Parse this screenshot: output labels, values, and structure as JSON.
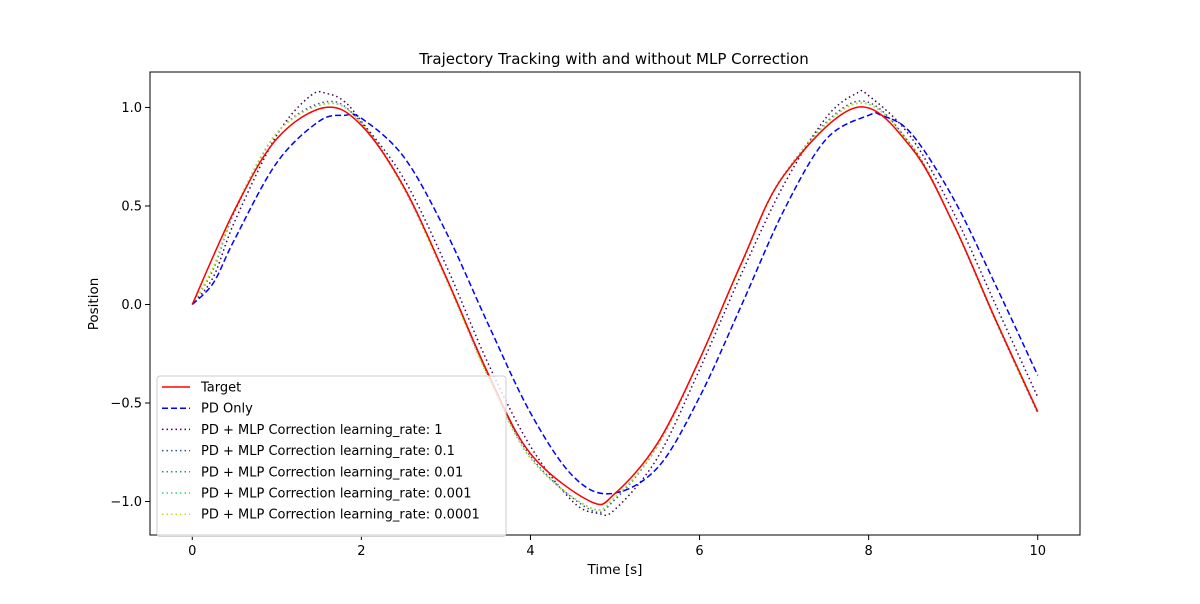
{
  "chart_data": {
    "type": "line",
    "title": "Trajectory Tracking with and without MLP Correction",
    "xlabel": "Time [s]",
    "ylabel": "Position",
    "xlim": [
      -0.5,
      10.5
    ],
    "ylim": [
      -1.17,
      1.18
    ],
    "xticks": [
      0,
      2,
      4,
      6,
      8,
      10
    ],
    "xtick_labels": [
      "0",
      "2",
      "4",
      "6",
      "8",
      "10"
    ],
    "yticks": [
      -1.0,
      -0.5,
      0.0,
      0.5,
      1.0
    ],
    "ytick_labels": [
      "−1.0",
      "−0.5",
      "0.0",
      "0.5",
      "1.0"
    ],
    "grid": false,
    "legend_position": "lower-left",
    "x_range": [
      0,
      10
    ],
    "series": [
      {
        "name": "Target",
        "color": "#ff0000",
        "style": "solid",
        "x": [
          0,
          0.5,
          1.0,
          1.5708,
          2.0,
          2.5,
          3.0,
          3.5,
          4.0,
          4.7124,
          5.0,
          5.5,
          6.0,
          6.5,
          7.0,
          7.854,
          8.5,
          9.0,
          9.5,
          10.0
        ],
        "y": [
          0.0,
          0.479,
          0.841,
          1.0,
          0.909,
          0.598,
          0.141,
          -0.351,
          -0.757,
          -1.0,
          -0.959,
          -0.706,
          -0.279,
          0.215,
          0.657,
          1.0,
          0.798,
          0.412,
          -0.075,
          -0.544
        ]
      },
      {
        "name": "PD Only",
        "color": "#0000ff",
        "style": "dashed",
        "x": [
          0,
          0.25,
          0.5,
          1.0,
          1.5,
          1.8,
          2.0,
          2.5,
          3.0,
          3.5,
          4.0,
          4.5,
          4.95,
          5.5,
          6.0,
          6.5,
          7.0,
          7.5,
          8.0,
          8.15,
          8.5,
          9.0,
          9.5,
          10.0
        ],
        "y": [
          0.0,
          0.11,
          0.33,
          0.72,
          0.93,
          0.96,
          0.945,
          0.75,
          0.37,
          -0.1,
          -0.55,
          -0.87,
          -0.96,
          -0.83,
          -0.47,
          0.0,
          0.48,
          0.84,
          0.96,
          0.96,
          0.87,
          0.54,
          0.1,
          -0.36
        ]
      },
      {
        "name": "PD + MLP Correction learning_rate: 1",
        "color": "#440154",
        "style": "dotted",
        "x": [
          0,
          0.25,
          0.5,
          1.0,
          1.4,
          1.6,
          1.8,
          2.0,
          2.5,
          3.0,
          3.5,
          4.0,
          4.5,
          4.8,
          5.0,
          5.5,
          6.0,
          6.5,
          7.0,
          7.5,
          7.85,
          8.0,
          8.5,
          9.0,
          9.5,
          10.0
        ],
        "y": [
          0.0,
          0.14,
          0.42,
          0.86,
          1.06,
          1.07,
          1.03,
          0.93,
          0.64,
          0.2,
          -0.3,
          -0.72,
          -1.0,
          -1.06,
          -1.04,
          -0.78,
          -0.33,
          0.16,
          0.61,
          0.95,
          1.07,
          1.06,
          0.85,
          0.47,
          0.0,
          -0.47
        ]
      },
      {
        "name": "PD + MLP Correction learning_rate: 0.1",
        "color": "#3b528b",
        "style": "dotted",
        "x": [
          0,
          0.25,
          0.5,
          1.0,
          1.6,
          2.0,
          2.5,
          3.0,
          3.5,
          4.0,
          4.7,
          5.0,
          5.5,
          6.0,
          6.5,
          7.0,
          7.85,
          8.5,
          9.0,
          9.5,
          10.0
        ],
        "y": [
          0.0,
          0.18,
          0.47,
          0.87,
          1.03,
          0.92,
          0.6,
          0.14,
          -0.36,
          -0.77,
          -1.04,
          -0.99,
          -0.72,
          -0.28,
          0.21,
          0.66,
          1.03,
          0.81,
          0.41,
          -0.08,
          -0.55
        ]
      },
      {
        "name": "PD + MLP Correction learning_rate: 0.01",
        "color": "#21918c",
        "style": "dotted",
        "x": [
          0,
          0.25,
          0.5,
          1.0,
          1.6,
          2.0,
          2.5,
          3.0,
          3.5,
          4.0,
          4.7,
          5.0,
          5.5,
          6.0,
          6.5,
          7.0,
          7.85,
          8.5,
          9.0,
          9.5,
          10.0
        ],
        "y": [
          0.0,
          0.19,
          0.47,
          0.87,
          1.02,
          0.92,
          0.59,
          0.13,
          -0.36,
          -0.78,
          -1.03,
          -0.98,
          -0.72,
          -0.28,
          0.21,
          0.66,
          1.02,
          0.81,
          0.41,
          -0.08,
          -0.55
        ]
      },
      {
        "name": "PD + MLP Correction learning_rate: 0.001",
        "color": "#3ccf7a",
        "style": "dotted",
        "x": [
          0,
          0.25,
          0.5,
          1.0,
          1.6,
          2.0,
          2.5,
          3.0,
          3.5,
          4.0,
          4.7,
          5.0,
          5.5,
          6.0,
          6.5,
          7.0,
          7.85,
          8.5,
          9.0,
          9.5,
          10.0
        ],
        "y": [
          0.0,
          0.19,
          0.48,
          0.87,
          1.02,
          0.92,
          0.59,
          0.13,
          -0.37,
          -0.78,
          -1.03,
          -0.98,
          -0.72,
          -0.28,
          0.21,
          0.66,
          1.02,
          0.81,
          0.41,
          -0.08,
          -0.55
        ]
      },
      {
        "name": "PD + MLP Correction learning_rate: 0.0001",
        "color": "#bddf26",
        "style": "dotted",
        "x": [
          0,
          0.25,
          0.5,
          1.0,
          1.6,
          2.0,
          2.5,
          3.0,
          3.5,
          4.0,
          4.7,
          5.0,
          5.5,
          6.0,
          6.5,
          7.0,
          7.85,
          8.5,
          9.0,
          9.5,
          10.0
        ],
        "y": [
          0.0,
          0.19,
          0.48,
          0.87,
          1.02,
          0.92,
          0.59,
          0.13,
          -0.37,
          -0.78,
          -1.03,
          -0.98,
          -0.72,
          -0.28,
          0.21,
          0.66,
          1.02,
          0.81,
          0.41,
          -0.08,
          -0.55
        ]
      }
    ]
  }
}
